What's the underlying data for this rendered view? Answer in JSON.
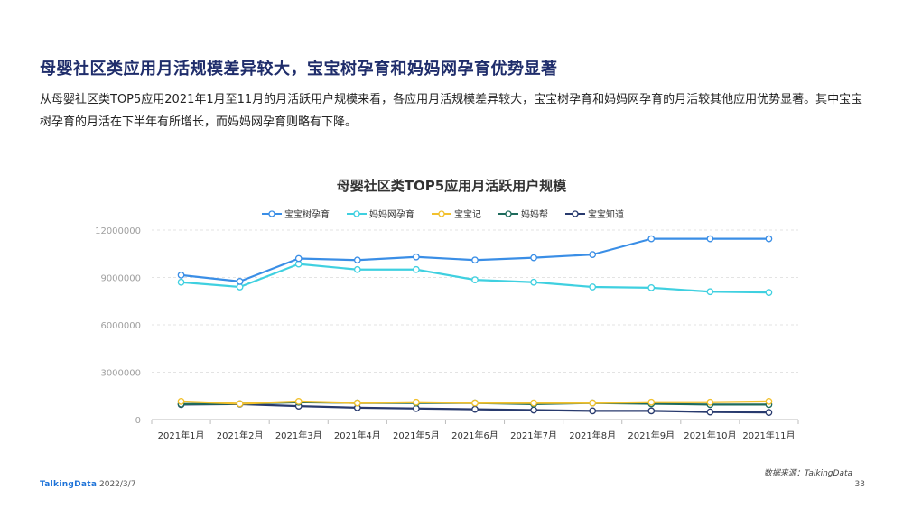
{
  "slide": {
    "headline": "母婴社区类应用月活规模差异较大，宝宝树孕育和妈妈网孕育优势显著",
    "paragraph": "从母婴社区类TOP5应用2021年1月至11月的月活跃用户规模来看，各应用月活规模差异较大，宝宝树孕育和妈妈网孕育的月活较其他应用优势显著。其中宝宝树孕育的月活在下半年有所增长，而妈妈网孕育则略有下降。",
    "source": "数据来源：TalkingData",
    "footer_logo": "TalkingData",
    "footer_date": "2022/3/7",
    "page_number": "33"
  },
  "chart_data": {
    "type": "line",
    "title": "母婴社区类TOP5应用月活跃用户规模",
    "categories": [
      "2021年1月",
      "2021年2月",
      "2021年3月",
      "2021年4月",
      "2021年5月",
      "2021年6月",
      "2021年7月",
      "2021年8月",
      "2021年9月",
      "2021年10月",
      "2021年11月"
    ],
    "ylim": [
      0,
      12000000
    ],
    "yticks": [
      0,
      3000000,
      6000000,
      9000000,
      12000000
    ],
    "grid": true,
    "legend_position": "top",
    "series": [
      {
        "name": "宝宝树孕育",
        "color": "#3a8ee6",
        "values": [
          9150000,
          8750000,
          10200000,
          10100000,
          10300000,
          10100000,
          10250000,
          10450000,
          11450000,
          11450000,
          11450000
        ]
      },
      {
        "name": "妈妈网孕育",
        "color": "#3fd0e0",
        "values": [
          8700000,
          8400000,
          9850000,
          9500000,
          9500000,
          8850000,
          8700000,
          8400000,
          8350000,
          8100000,
          8050000
        ]
      },
      {
        "name": "宝宝记",
        "color": "#f2c12e",
        "values": [
          1150000,
          1000000,
          1150000,
          1050000,
          1100000,
          1050000,
          1050000,
          1050000,
          1100000,
          1100000,
          1150000
        ]
      },
      {
        "name": "妈妈帮",
        "color": "#1e6b5c",
        "values": [
          980000,
          1000000,
          1100000,
          1050000,
          1050000,
          1050000,
          980000,
          1050000,
          1000000,
          950000,
          950000
        ]
      },
      {
        "name": "宝宝知道",
        "color": "#283a6e",
        "values": [
          950000,
          980000,
          850000,
          750000,
          700000,
          650000,
          600000,
          550000,
          550000,
          480000,
          450000
        ]
      }
    ]
  }
}
